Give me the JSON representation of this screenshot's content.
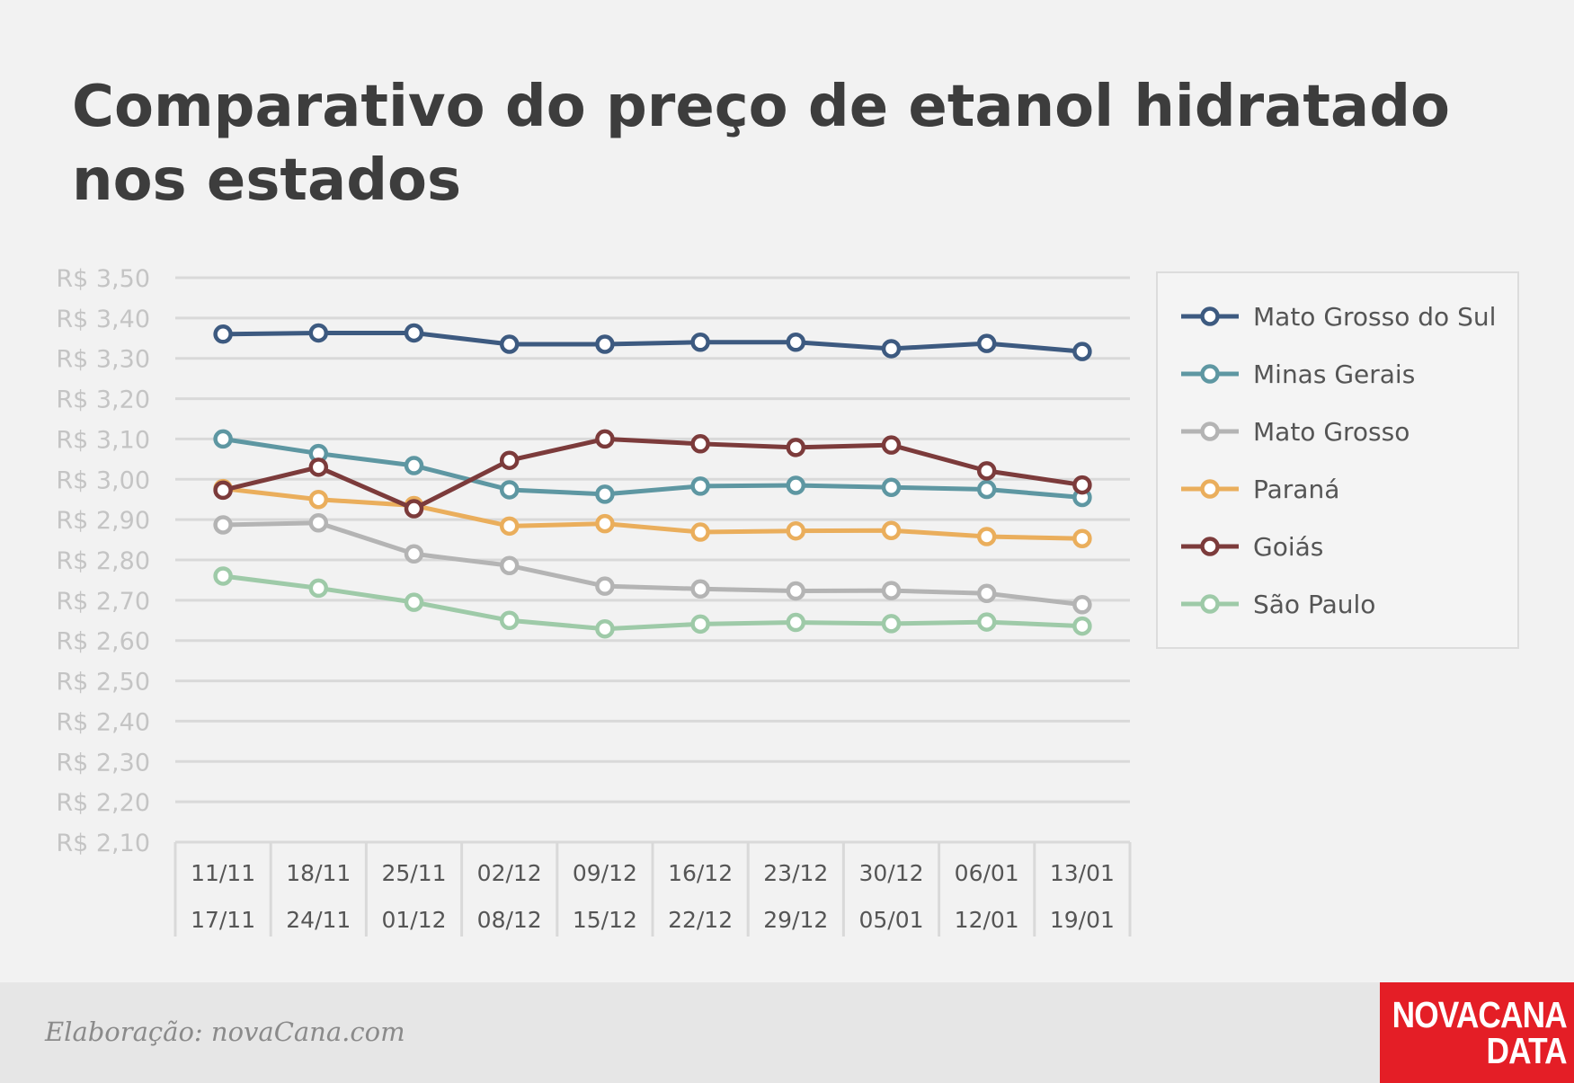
{
  "title_lines": [
    "Comparativo do preço de etanol hidratado",
    "nos estados"
  ],
  "footer": {
    "credit": "Elaboração: novaCana.com",
    "logo_line1": "NOVACANA",
    "logo_line2": "DATA"
  },
  "chart_data": {
    "type": "line",
    "title": "Comparativo do preço de etanol hidratado nos estados",
    "xlabel": "",
    "ylabel": "",
    "ylim": [
      2.1,
      3.5
    ],
    "ytick_step": 0.1,
    "y_tick_labels": [
      "R$ 3,50",
      "R$ 3,40",
      "R$ 3,30",
      "R$ 3,20",
      "R$ 3,10",
      "R$ 3,00",
      "R$ 2,90",
      "R$ 2,80",
      "R$ 2,70",
      "R$ 2,60",
      "R$ 2,50",
      "R$ 2,40",
      "R$ 2,30",
      "R$ 2,20",
      "R$ 2,10"
    ],
    "grid": true,
    "legend_position": "right",
    "categories": [
      {
        "start": "11/11",
        "end": "17/11"
      },
      {
        "start": "18/11",
        "end": "24/11"
      },
      {
        "start": "25/11",
        "end": "01/12"
      },
      {
        "start": "02/12",
        "end": "08/12"
      },
      {
        "start": "09/12",
        "end": "15/12"
      },
      {
        "start": "16/12",
        "end": "22/12"
      },
      {
        "start": "23/12",
        "end": "29/12"
      },
      {
        "start": "30/12",
        "end": "05/01"
      },
      {
        "start": "06/01",
        "end": "12/01"
      },
      {
        "start": "13/01",
        "end": "19/01"
      }
    ],
    "series": [
      {
        "name": "Mato Grosso do Sul",
        "color": "#3d5a80",
        "values": [
          3.36,
          3.363,
          3.363,
          3.335,
          3.335,
          3.34,
          3.34,
          3.324,
          3.337,
          3.317
        ]
      },
      {
        "name": "Minas Gerais",
        "color": "#5e97a2",
        "values": [
          3.1,
          3.064,
          3.034,
          2.974,
          2.963,
          2.983,
          2.985,
          2.98,
          2.975,
          2.955
        ]
      },
      {
        "name": "Mato Grosso",
        "color": "#b4b4b4",
        "values": [
          2.887,
          2.892,
          2.815,
          2.786,
          2.735,
          2.728,
          2.723,
          2.724,
          2.717,
          2.689
        ]
      },
      {
        "name": "Paraná",
        "color": "#eaae5c",
        "values": [
          2.977,
          2.95,
          2.935,
          2.884,
          2.89,
          2.869,
          2.872,
          2.873,
          2.858,
          2.853
        ]
      },
      {
        "name": "Goiás",
        "color": "#7c3b3b",
        "values": [
          2.973,
          3.03,
          2.927,
          3.047,
          3.1,
          3.088,
          3.079,
          3.085,
          3.021,
          2.986
        ]
      },
      {
        "name": "São Paulo",
        "color": "#9ecaa8",
        "values": [
          2.76,
          2.73,
          2.695,
          2.65,
          2.629,
          2.641,
          2.645,
          2.642,
          2.646,
          2.636
        ]
      }
    ]
  }
}
